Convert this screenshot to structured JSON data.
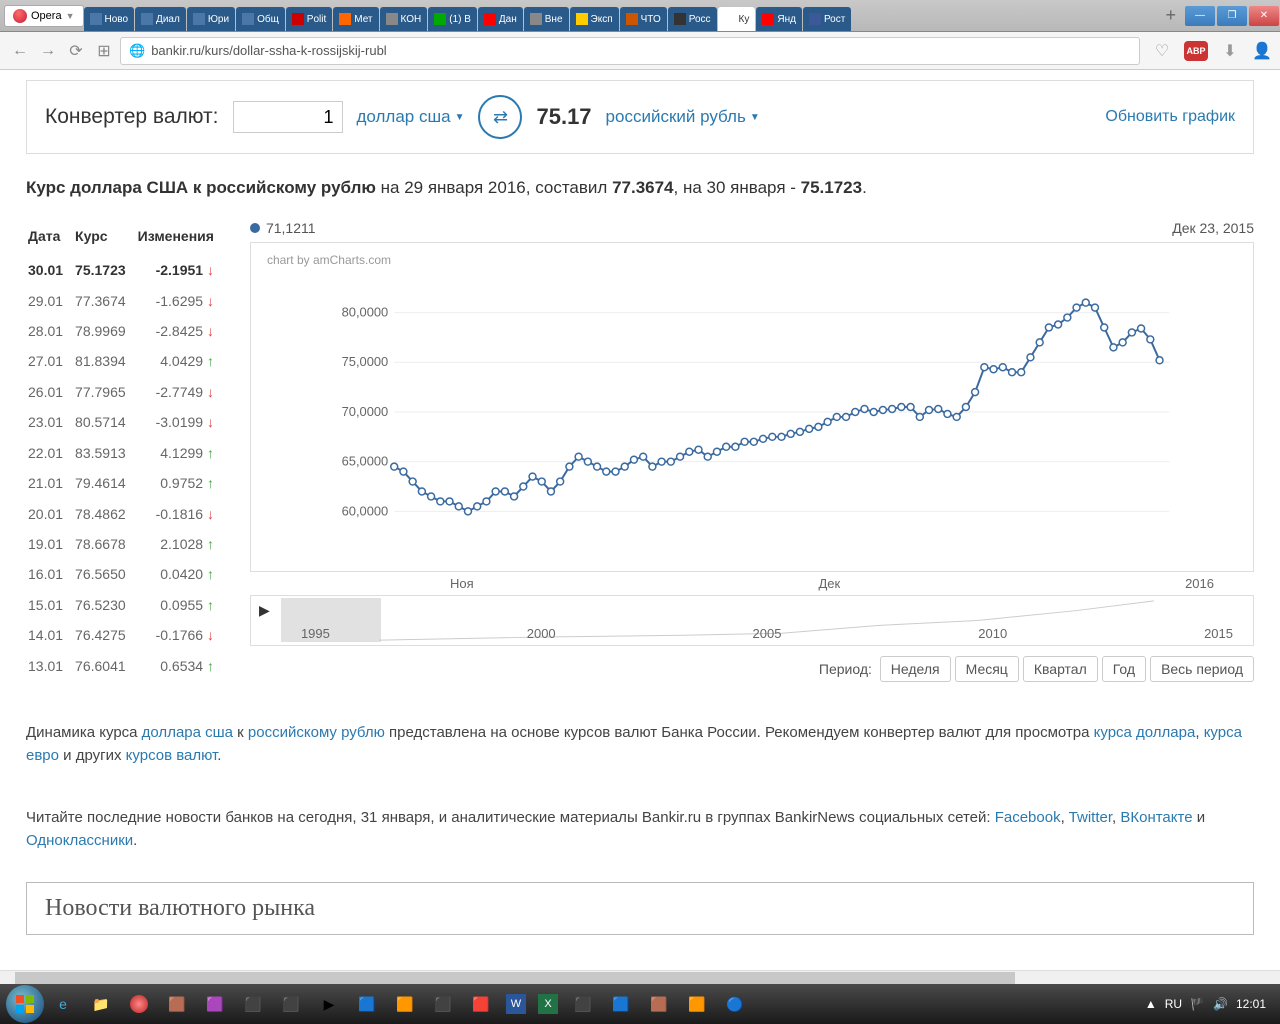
{
  "browser": {
    "name": "Opera",
    "tabs": [
      {
        "label": "Ново",
        "color": "#4a76a8"
      },
      {
        "label": "Диал",
        "color": "#4a76a8"
      },
      {
        "label": "Юри",
        "color": "#4a76a8"
      },
      {
        "label": "Общ",
        "color": "#4a76a8"
      },
      {
        "label": "Polit",
        "color": "#cc0000"
      },
      {
        "label": "Мет",
        "color": "#ff6600"
      },
      {
        "label": "КОН",
        "color": "#888"
      },
      {
        "label": "(1) В",
        "color": "#00aa00"
      },
      {
        "label": "Дан",
        "color": "#ff0000"
      },
      {
        "label": "Вне",
        "color": "#888"
      },
      {
        "label": "Эксп",
        "color": "#ffcc00"
      },
      {
        "label": "ЧТО",
        "color": "#cc5500"
      },
      {
        "label": "Росс",
        "color": "#333"
      },
      {
        "label": "Ку",
        "color": "#fff",
        "active": true
      },
      {
        "label": "Янд",
        "color": "#ff0000"
      },
      {
        "label": "Рост",
        "color": "#3b5998"
      }
    ],
    "url": "bankir.ru/kurs/dollar-ssha-k-rossijskij-rubl"
  },
  "converter": {
    "title": "Конвертер валют:",
    "amount": "1",
    "from": "доллар сша",
    "result": "75.17",
    "to": "российский рубль",
    "update": "Обновить график"
  },
  "headline": {
    "prefix": "Курс доллара США к российскому рублю",
    "text1": " на 29 января 2016, составил ",
    "rate1": "77.3674",
    "text2": ", на 30 января - ",
    "rate2": "75.1723",
    "dot": "."
  },
  "table": {
    "headers": [
      "Дата",
      "Курс",
      "Изменения"
    ],
    "rows": [
      {
        "date": "30.01",
        "rate": "75.1723",
        "chg": "-2.1951",
        "dir": "dn",
        "bold": true
      },
      {
        "date": "29.01",
        "rate": "77.3674",
        "chg": "-1.6295",
        "dir": "dn"
      },
      {
        "date": "28.01",
        "rate": "78.9969",
        "chg": "-2.8425",
        "dir": "dn"
      },
      {
        "date": "27.01",
        "rate": "81.8394",
        "chg": "4.0429",
        "dir": "up"
      },
      {
        "date": "26.01",
        "rate": "77.7965",
        "chg": "-2.7749",
        "dir": "dn"
      },
      {
        "date": "23.01",
        "rate": "80.5714",
        "chg": "-3.0199",
        "dir": "dn"
      },
      {
        "date": "22.01",
        "rate": "83.5913",
        "chg": "4.1299",
        "dir": "up"
      },
      {
        "date": "21.01",
        "rate": "79.4614",
        "chg": "0.9752",
        "dir": "up"
      },
      {
        "date": "20.01",
        "rate": "78.4862",
        "chg": "-0.1816",
        "dir": "dn"
      },
      {
        "date": "19.01",
        "rate": "78.6678",
        "chg": "2.1028",
        "dir": "up"
      },
      {
        "date": "16.01",
        "rate": "76.5650",
        "chg": "0.0420",
        "dir": "up"
      },
      {
        "date": "15.01",
        "rate": "76.5230",
        "chg": "0.0955",
        "dir": "up"
      },
      {
        "date": "14.01",
        "rate": "76.4275",
        "chg": "-0.1766",
        "dir": "dn"
      },
      {
        "date": "13.01",
        "rate": "76.6041",
        "chg": "0.6534",
        "dir": "up"
      }
    ]
  },
  "chart": {
    "hover_value": "71,1211",
    "date_label": "Дек 23, 2015",
    "credit": "chart by amCharts.com",
    "y_ticks": [
      "80,0000",
      "75,0000",
      "70,0000",
      "65,0000",
      "60,0000"
    ],
    "y_values": [
      80,
      75,
      70,
      65,
      60
    ],
    "x_labels": [
      "Ноя",
      "Дек",
      "2016"
    ],
    "line_color": "#3a6aa0",
    "marker_fill": "#ffffff",
    "series": [
      64.5,
      64,
      63,
      62,
      61.5,
      61,
      61,
      60.5,
      60,
      60.5,
      61,
      62,
      62,
      61.5,
      62.5,
      63.5,
      63,
      62,
      63,
      64.5,
      65.5,
      65,
      64.5,
      64,
      64,
      64.5,
      65.2,
      65.5,
      64.5,
      65,
      65,
      65.5,
      66,
      66.2,
      65.5,
      66,
      66.5,
      66.5,
      67,
      67,
      67.3,
      67.5,
      67.5,
      67.8,
      68,
      68.3,
      68.5,
      69,
      69.5,
      69.5,
      70,
      70.3,
      70,
      70.2,
      70.3,
      70.5,
      70.5,
      69.5,
      70.2,
      70.3,
      69.8,
      69.5,
      70.5,
      72,
      74.5,
      74.3,
      74.5,
      74,
      74,
      75.5,
      77,
      78.5,
      78.8,
      79.5,
      80.5,
      81,
      80.5,
      78.5,
      76.5,
      77,
      78,
      78.4,
      77.3,
      75.2
    ],
    "mini_years": [
      "1995",
      "2000",
      "2005",
      "2010",
      "2015"
    ]
  },
  "period": {
    "label": "Период:",
    "buttons": [
      "Неделя",
      "Месяц",
      "Квартал",
      "Год",
      "Весь период"
    ]
  },
  "para1": {
    "t1": "Динамика курса ",
    "l1": "доллара сша",
    "t2": " к ",
    "l2": "российскому рублю",
    "t3": " представлена на основе курсов валют Банка России. Рекомендуем конвертер валют для просмотра ",
    "l3": "курса доллара",
    "t4": ", ",
    "l4": "курса евро",
    "t5": " и других ",
    "l5": "курсов валют",
    "t6": "."
  },
  "para2": {
    "t1": "Читайте последние новости банков на сегодня, 31 января, и аналитические материалы Bankir.ru в группах BankirNews социальных сетей: ",
    "l1": "Facebook",
    "t2": ", ",
    "l2": "Twitter",
    "t3": ", ",
    "l3": "ВКонтакте",
    "t4": " и ",
    "l4": "Одноклассники",
    "t5": "."
  },
  "news_title": "Новости валютного рынка",
  "systray": {
    "lang": "RU",
    "time": "12:01"
  }
}
